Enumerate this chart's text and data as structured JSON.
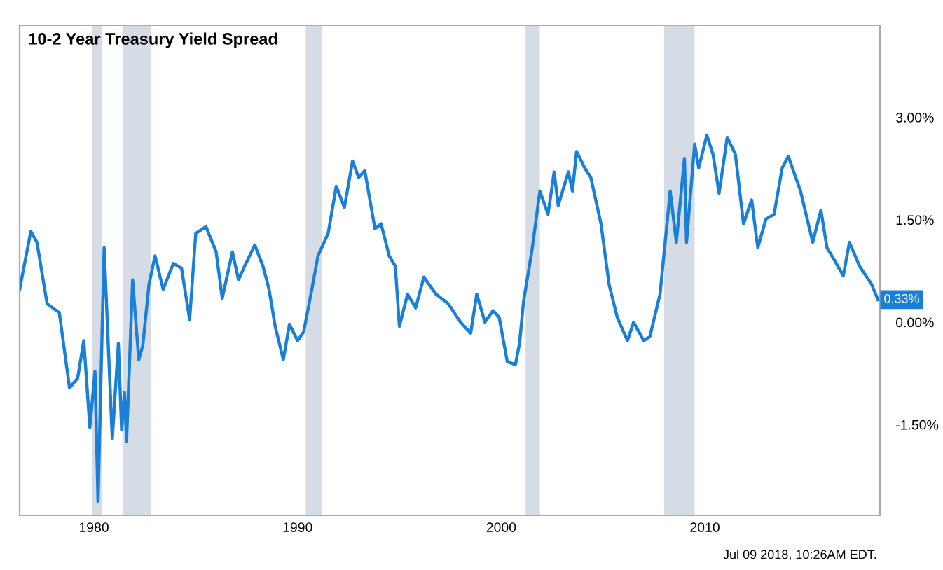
{
  "chart_data": {
    "type": "line",
    "title": "10-2 Year Treasury Yield Spread",
    "x": [
      1976.35,
      1976.9,
      1977.2,
      1977.7,
      1978.3,
      1978.8,
      1979.2,
      1979.5,
      1979.8,
      1980.05,
      1980.2,
      1980.5,
      1980.9,
      1981.2,
      1981.36,
      1981.5,
      1981.6,
      1981.9,
      1982.2,
      1982.4,
      1982.7,
      1983.0,
      1983.4,
      1983.9,
      1984.3,
      1984.7,
      1985.0,
      1985.5,
      1986.0,
      1986.3,
      1986.8,
      1987.1,
      1987.4,
      1987.9,
      1988.3,
      1988.6,
      1988.9,
      1989.3,
      1989.6,
      1990.0,
      1990.3,
      1990.7,
      1991.0,
      1991.5,
      1991.9,
      1992.3,
      1992.7,
      1993.0,
      1993.3,
      1993.8,
      1994.1,
      1994.5,
      1994.8,
      1995.0,
      1995.4,
      1995.8,
      1996.2,
      1996.8,
      1997.4,
      1998.0,
      1998.5,
      1998.8,
      1999.2,
      1999.6,
      1999.9,
      2000.3,
      2000.7,
      2000.9,
      2001.1,
      2001.5,
      2001.9,
      2002.3,
      2002.6,
      2002.8,
      2003.3,
      2003.5,
      2003.7,
      2004.1,
      2004.4,
      2004.9,
      2005.3,
      2005.7,
      2006.2,
      2006.5,
      2007.0,
      2007.3,
      2007.8,
      2008.3,
      2008.6,
      2009.0,
      2009.1,
      2009.5,
      2009.7,
      2010.1,
      2010.4,
      2010.7,
      2011.1,
      2011.5,
      2011.9,
      2012.3,
      2012.6,
      2013.0,
      2013.4,
      2013.8,
      2014.1,
      2014.7,
      2015.3,
      2015.7,
      2016.0,
      2016.4,
      2016.8,
      2017.1,
      2017.6,
      2018.2,
      2018.5
    ],
    "series": [
      {
        "color": "#1a7fd6",
        "values": [
          0.48,
          1.33,
          1.17,
          0.27,
          0.14,
          -0.96,
          -0.82,
          -0.27,
          -1.54,
          -0.72,
          -2.63,
          1.09,
          -1.71,
          -0.31,
          -1.58,
          -1.03,
          -1.75,
          0.62,
          -0.55,
          -0.34,
          0.55,
          0.97,
          0.48,
          0.86,
          0.79,
          0.04,
          1.3,
          1.4,
          1.03,
          0.35,
          1.03,
          0.62,
          0.82,
          1.13,
          0.82,
          0.48,
          -0.06,
          -0.55,
          -0.03,
          -0.27,
          -0.14,
          0.48,
          0.97,
          1.3,
          1.99,
          1.68,
          2.36,
          2.12,
          2.22,
          1.37,
          1.44,
          0.97,
          0.82,
          -0.06,
          0.41,
          0.21,
          0.66,
          0.41,
          0.27,
          0.0,
          -0.16,
          0.41,
          0.0,
          0.17,
          0.07,
          -0.58,
          -0.62,
          -0.31,
          0.31,
          1.03,
          1.92,
          1.58,
          2.2,
          1.71,
          2.2,
          1.92,
          2.5,
          2.26,
          2.12,
          1.44,
          0.55,
          0.07,
          -0.27,
          0.0,
          -0.27,
          -0.21,
          0.41,
          1.92,
          1.17,
          2.4,
          1.17,
          2.61,
          2.26,
          2.74,
          2.46,
          1.89,
          2.71,
          2.46,
          1.44,
          1.79,
          1.09,
          1.51,
          1.58,
          2.26,
          2.43,
          1.92,
          1.17,
          1.64,
          1.09,
          0.89,
          0.68,
          1.17,
          0.82,
          0.55,
          0.33
        ]
      }
    ],
    "xlim": [
      1976.35,
      2018.6
    ],
    "xticks": [
      1980,
      1990,
      2000,
      2010
    ],
    "ylim": [
      -2.83,
      4.35
    ],
    "yticks": [
      {
        "value": -1.5,
        "label": "-1.50%"
      },
      {
        "value": 0,
        "label": "0.00%"
      },
      {
        "value": 1.5,
        "label": "1.50%"
      },
      {
        "value": 3,
        "label": "3.00%"
      }
    ],
    "bands": [
      {
        "axis": "x",
        "from": 1979.9,
        "to": 1980.4,
        "color": "#d5dce6"
      },
      {
        "axis": "x",
        "from": 1981.4,
        "to": 1982.8,
        "color": "#d5dce6"
      },
      {
        "axis": "x",
        "from": 1990.4,
        "to": 1991.2,
        "color": "#d5dce6"
      },
      {
        "axis": "x",
        "from": 2001.2,
        "to": 2001.9,
        "color": "#d5dce6"
      },
      {
        "axis": "x",
        "from": 2008.0,
        "to": 2009.5,
        "color": "#d5dce6"
      }
    ],
    "annotations": [
      {
        "text": "0.33%",
        "x": 2018.5,
        "y": 0.33
      },
      "Jul 09 2018, 10:26AM EDT."
    ],
    "grid": false
  }
}
